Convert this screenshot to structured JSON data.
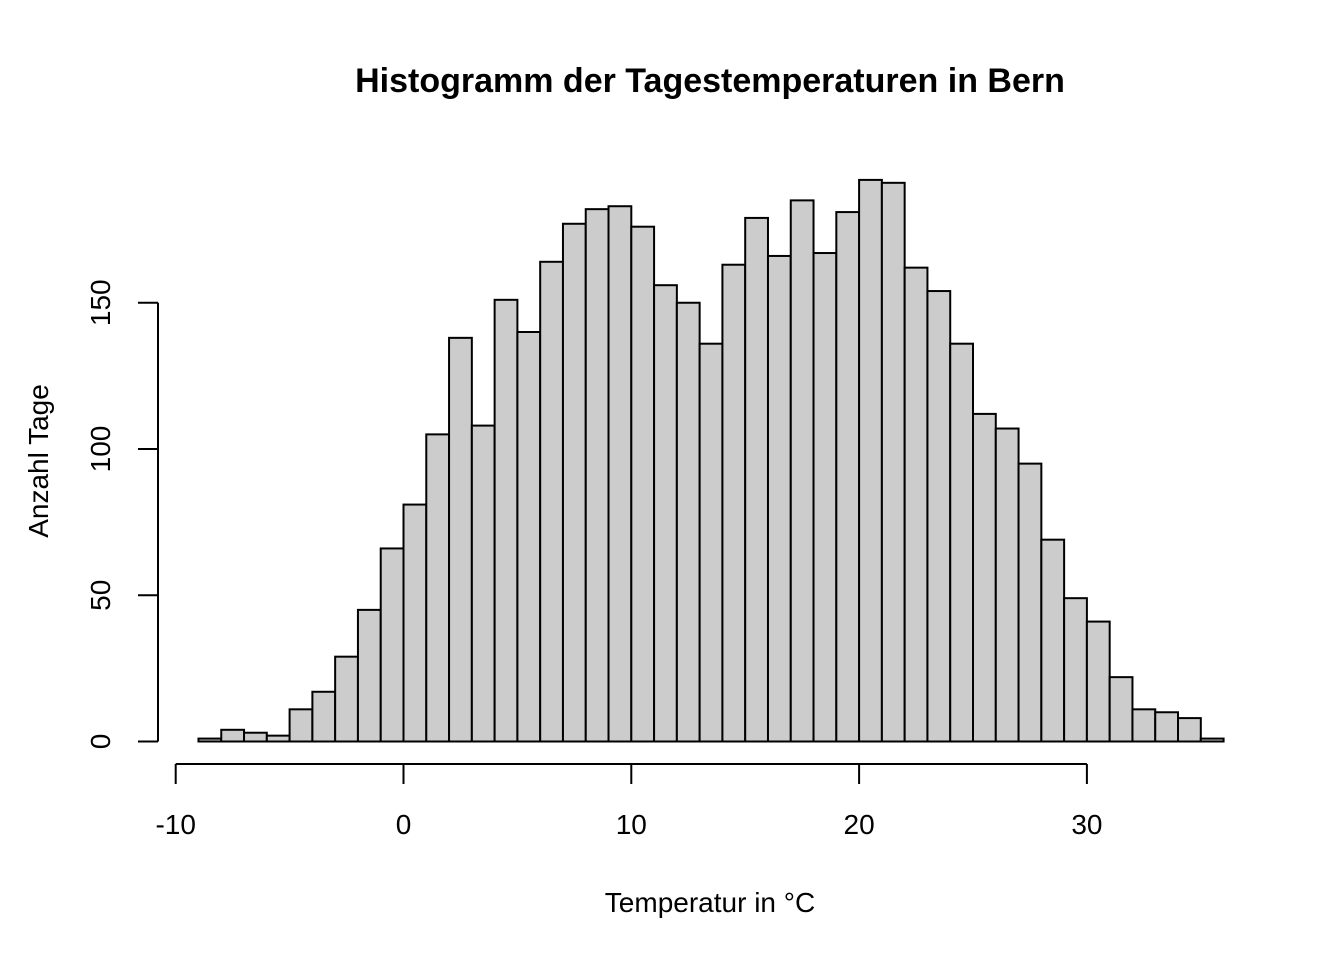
{
  "chart_data": {
    "type": "bar",
    "title": "Histogramm der Tagestemperaturen in Bern",
    "xlabel": "Temperatur in °C",
    "ylabel": "Anzahl Tage",
    "bin_width": 1,
    "bins": [
      {
        "x0": -9,
        "x1": -8,
        "count": 1
      },
      {
        "x0": -8,
        "x1": -7,
        "count": 4
      },
      {
        "x0": -7,
        "x1": -6,
        "count": 3
      },
      {
        "x0": -6,
        "x1": -5,
        "count": 2
      },
      {
        "x0": -5,
        "x1": -4,
        "count": 11
      },
      {
        "x0": -4,
        "x1": -3,
        "count": 17
      },
      {
        "x0": -3,
        "x1": -2,
        "count": 29
      },
      {
        "x0": -2,
        "x1": -1,
        "count": 45
      },
      {
        "x0": -1,
        "x1": 0,
        "count": 66
      },
      {
        "x0": 0,
        "x1": 1,
        "count": 81
      },
      {
        "x0": 1,
        "x1": 2,
        "count": 105
      },
      {
        "x0": 2,
        "x1": 3,
        "count": 138
      },
      {
        "x0": 3,
        "x1": 4,
        "count": 108
      },
      {
        "x0": 4,
        "x1": 5,
        "count": 151
      },
      {
        "x0": 5,
        "x1": 6,
        "count": 140
      },
      {
        "x0": 6,
        "x1": 7,
        "count": 164
      },
      {
        "x0": 7,
        "x1": 8,
        "count": 177
      },
      {
        "x0": 8,
        "x1": 9,
        "count": 182
      },
      {
        "x0": 9,
        "x1": 10,
        "count": 183
      },
      {
        "x0": 10,
        "x1": 11,
        "count": 176
      },
      {
        "x0": 11,
        "x1": 12,
        "count": 156
      },
      {
        "x0": 12,
        "x1": 13,
        "count": 150
      },
      {
        "x0": 13,
        "x1": 14,
        "count": 136
      },
      {
        "x0": 14,
        "x1": 15,
        "count": 163
      },
      {
        "x0": 15,
        "x1": 16,
        "count": 179
      },
      {
        "x0": 16,
        "x1": 17,
        "count": 166
      },
      {
        "x0": 17,
        "x1": 18,
        "count": 185
      },
      {
        "x0": 18,
        "x1": 19,
        "count": 167
      },
      {
        "x0": 19,
        "x1": 20,
        "count": 181
      },
      {
        "x0": 20,
        "x1": 21,
        "count": 192
      },
      {
        "x0": 21,
        "x1": 22,
        "count": 191
      },
      {
        "x0": 22,
        "x1": 23,
        "count": 162
      },
      {
        "x0": 23,
        "x1": 24,
        "count": 154
      },
      {
        "x0": 24,
        "x1": 25,
        "count": 136
      },
      {
        "x0": 25,
        "x1": 26,
        "count": 112
      },
      {
        "x0": 26,
        "x1": 27,
        "count": 107
      },
      {
        "x0": 27,
        "x1": 28,
        "count": 95
      },
      {
        "x0": 28,
        "x1": 29,
        "count": 69
      },
      {
        "x0": 29,
        "x1": 30,
        "count": 49
      },
      {
        "x0": 30,
        "x1": 31,
        "count": 41
      },
      {
        "x0": 31,
        "x1": 32,
        "count": 22
      },
      {
        "x0": 32,
        "x1": 33,
        "count": 11
      },
      {
        "x0": 33,
        "x1": 34,
        "count": 10
      },
      {
        "x0": 34,
        "x1": 35,
        "count": 8
      },
      {
        "x0": 35,
        "x1": 36,
        "count": 1
      }
    ],
    "x_ticks": [
      -10,
      0,
      10,
      20,
      30
    ],
    "x_tick_labels": [
      "-10",
      "0",
      "10",
      "20",
      "30"
    ],
    "y_ticks": [
      0,
      50,
      100,
      150
    ],
    "y_tick_labels": [
      "0",
      "50",
      "100",
      "150"
    ],
    "xlim": [
      -10,
      36
    ],
    "ylim": [
      0,
      192
    ],
    "bar_color": "#cccccc",
    "edge_color": "#000000",
    "grid": false,
    "legend": "none"
  }
}
